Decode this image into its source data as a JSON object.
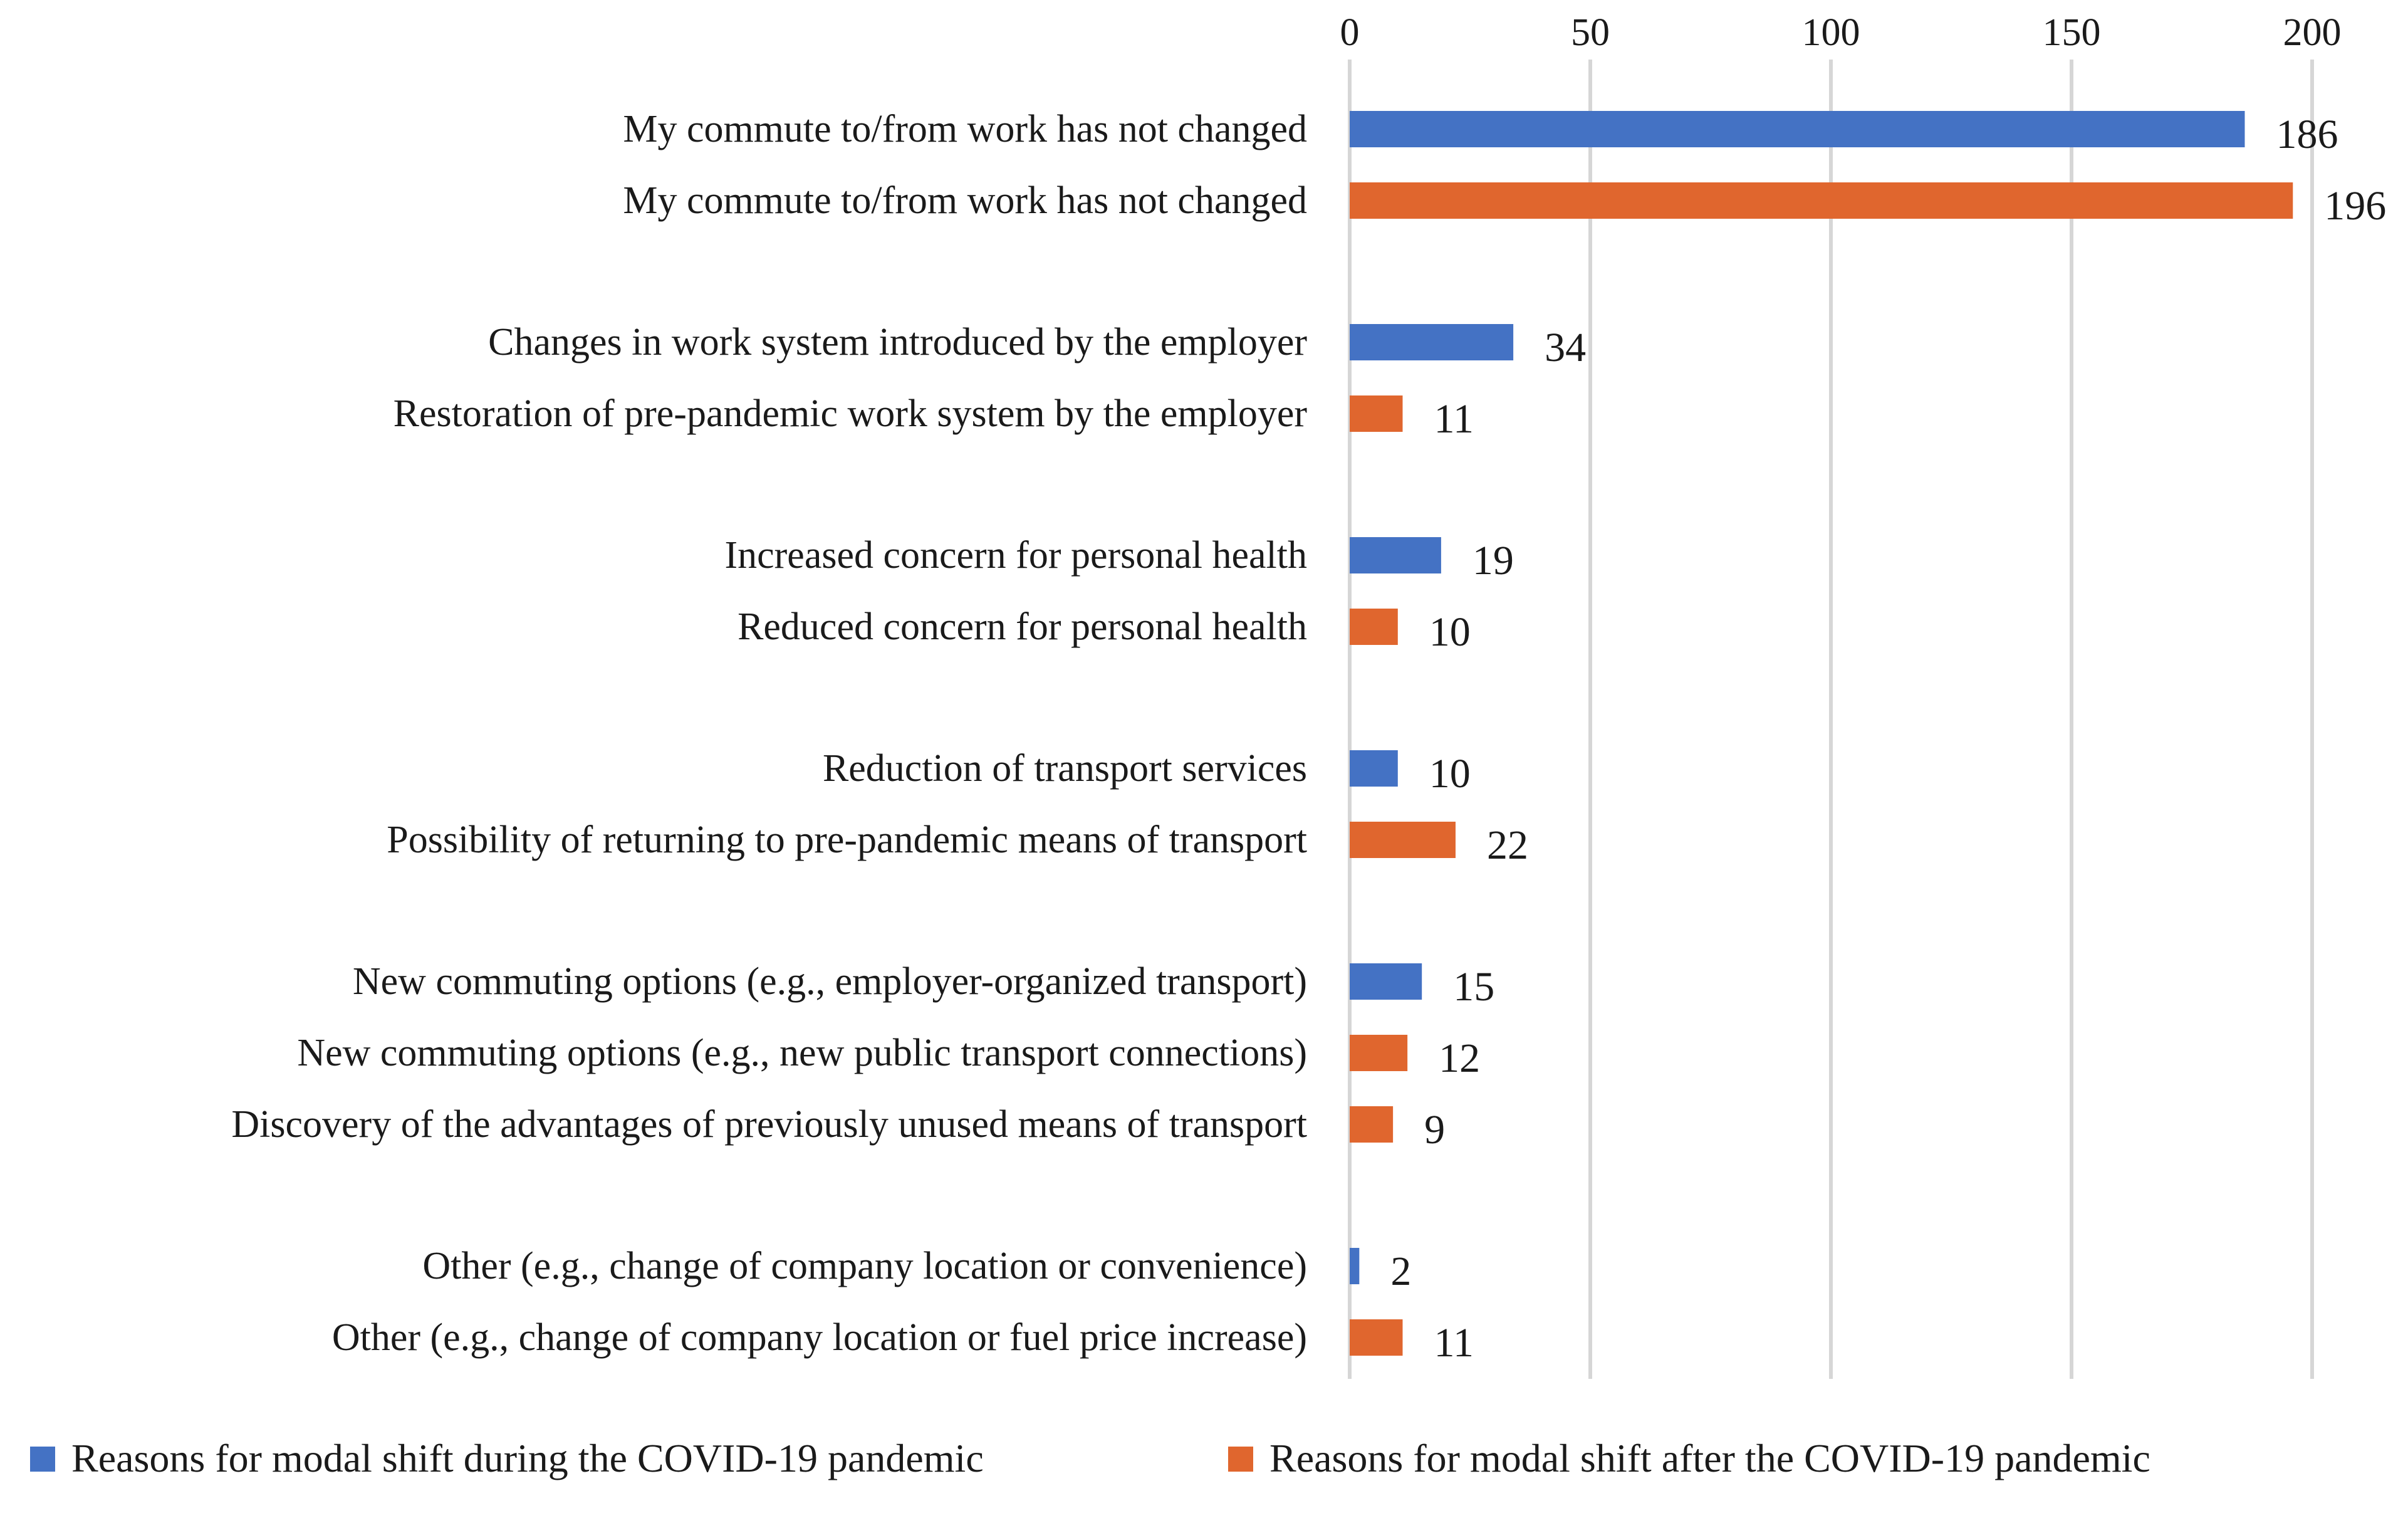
{
  "chart_data": {
    "type": "bar",
    "orientation": "horizontal",
    "title": "",
    "xlabel": "",
    "ylabel": "",
    "xlim": [
      0,
      200
    ],
    "x_ticks": [
      "0",
      "50",
      "100",
      "150",
      "200"
    ],
    "x_tick_values": [
      0,
      50,
      100,
      150,
      200
    ],
    "x_axis_position": "top",
    "grid": true,
    "legend_position": "bottom",
    "series": [
      {
        "name": "Reasons for modal shift during the COVID-19 pandemic",
        "color": "#4472c4"
      },
      {
        "name": "Reasons for modal shift after the COVID-19 pandemic",
        "color": "#e0662e"
      }
    ],
    "groups": [
      {
        "bars": [
          {
            "label": "My commute to/from work has not changed",
            "series": 0,
            "value": 186,
            "value_label": "186"
          },
          {
            "label": "My commute to/from work has not changed",
            "series": 1,
            "value": 196,
            "value_label": "196"
          }
        ]
      },
      {
        "bars": [
          {
            "label": "Changes in work system introduced by the employer",
            "series": 0,
            "value": 34,
            "value_label": "34"
          },
          {
            "label": "Restoration of pre-pandemic work system by the employer",
            "series": 1,
            "value": 11,
            "value_label": "11"
          }
        ]
      },
      {
        "bars": [
          {
            "label": "Increased concern for personal health",
            "series": 0,
            "value": 19,
            "value_label": "19"
          },
          {
            "label": "Reduced concern for personal health",
            "series": 1,
            "value": 10,
            "value_label": "10"
          }
        ]
      },
      {
        "bars": [
          {
            "label": "Reduction of transport services",
            "series": 0,
            "value": 10,
            "value_label": "10"
          },
          {
            "label": "Possibility of returning to pre-pandemic means of transport",
            "series": 1,
            "value": 22,
            "value_label": "22"
          }
        ]
      },
      {
        "bars": [
          {
            "label": "New commuting options (e.g., employer-organized transport)",
            "series": 0,
            "value": 15,
            "value_label": "15"
          },
          {
            "label": "New commuting options (e.g., new public transport connections)",
            "series": 1,
            "value": 12,
            "value_label": "12"
          },
          {
            "label": "Discovery of the advantages of previously unused means of transport",
            "series": 1,
            "value": 9,
            "value_label": "9"
          }
        ]
      },
      {
        "bars": [
          {
            "label": "Other (e.g., change of company location or convenience)",
            "series": 0,
            "value": 2,
            "value_label": "2"
          },
          {
            "label": "Other (e.g., change of company location or fuel price increase)",
            "series": 1,
            "value": 11,
            "value_label": "11"
          }
        ]
      }
    ]
  }
}
